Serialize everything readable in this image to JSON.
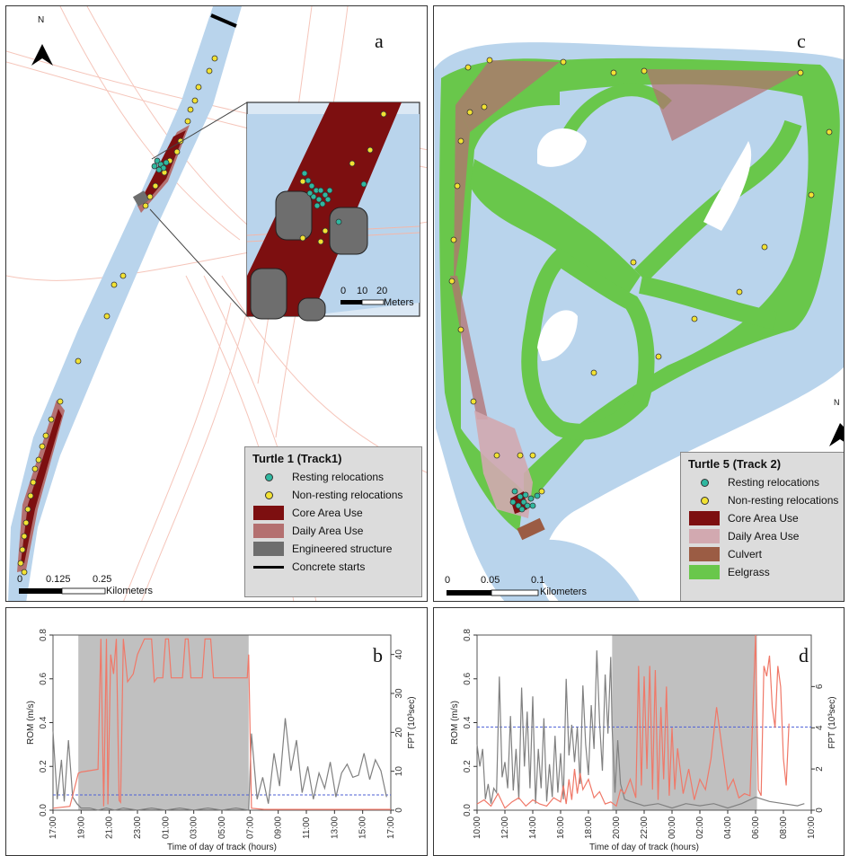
{
  "colors": {
    "water": "#b9d4ec",
    "road": "#f3b7a9",
    "core": "#7d0f10",
    "daily": "#b47070",
    "daily_c": "#d2a9b0",
    "engineered": "#6e6e6e",
    "culvert": "#9b5c44",
    "eelgrass": "#69c74b",
    "resting": "#2fb8a0",
    "nonresting": "#f2e233",
    "night": "#c0c0c0",
    "rom_line": "#808080",
    "fpt_line": "#f07868",
    "threshold": "#4c5fd6"
  },
  "panels": {
    "a": {
      "letter": "a",
      "north": "N",
      "legend": {
        "title": "Turtle 1 (Track1)",
        "items": [
          {
            "label": "Resting relocations",
            "type": "dot",
            "color": "#2fb8a0"
          },
          {
            "label": "Non-resting relocations",
            "type": "dot",
            "color": "#f2e233"
          },
          {
            "label": "Core Area Use",
            "type": "swatch",
            "color": "#7d0f10"
          },
          {
            "label": "Daily Area Use",
            "type": "swatch",
            "color": "#b47070"
          },
          {
            "label": "Engineered structure",
            "type": "swatch",
            "color": "#6e6e6e"
          },
          {
            "label": "Concrete starts",
            "type": "line",
            "color": "#000000"
          }
        ]
      },
      "scale": {
        "ticks": [
          "0",
          "0.125",
          "0.25"
        ],
        "unit": "Kilometers"
      },
      "inset_scale": {
        "ticks": [
          "0",
          "10",
          "20"
        ],
        "unit": "Meters"
      }
    },
    "c": {
      "letter": "c",
      "north": "N",
      "legend": {
        "title": "Turtle 5 (Track 2)",
        "items": [
          {
            "label": "Resting relocations",
            "type": "dot",
            "color": "#2fb8a0"
          },
          {
            "label": "Non-resting relocations",
            "type": "dot",
            "color": "#f2e233"
          },
          {
            "label": "Core Area Use",
            "type": "swatch",
            "color": "#7d0f10"
          },
          {
            "label": "Daily Area Use",
            "type": "swatch",
            "color": "#d2a9b0"
          },
          {
            "label": "Culvert",
            "type": "swatch",
            "color": "#9b5c44"
          },
          {
            "label": "Eelgrass",
            "type": "swatch",
            "color": "#69c74b"
          }
        ]
      },
      "scale": {
        "ticks": [
          "0",
          "0.05",
          "0.1"
        ],
        "unit": "Kilometers"
      }
    }
  },
  "chart_data": [
    {
      "panel": "b",
      "type": "line",
      "xlabel": "Time of day of track (hours)",
      "ylabel": "ROM (m/s)",
      "y2label": "FPT (10³sec)",
      "ylim": [
        0,
        0.8
      ],
      "y2lim": [
        0,
        45
      ],
      "xlim": [
        0,
        24
      ],
      "x_ticks": [
        0,
        2,
        4,
        6,
        8,
        10,
        12,
        14,
        16,
        18,
        20,
        22,
        24
      ],
      "x_tick_labels": [
        "17:00",
        "19:00",
        "21:00",
        "23:00",
        "01:00",
        "03:00",
        "05:00",
        "07:00",
        "09:00",
        "11:00",
        "13:00",
        "15:00",
        "17:00"
      ],
      "y_ticks": [
        0.0,
        0.2,
        0.4,
        0.6,
        0.8
      ],
      "y_tick_labels": [
        "0.0",
        "0.2",
        "0.4",
        "0.6",
        "0.8"
      ],
      "y2_ticks": [
        0,
        10,
        20,
        30,
        40
      ],
      "y2_tick_labels": [
        "0",
        "10",
        "20",
        "30",
        "40"
      ],
      "night": [
        1.8,
        13.9
      ],
      "threshold": 0.07,
      "series": [
        {
          "axis": "left",
          "x": [
            0,
            0.3,
            0.6,
            0.8,
            1.1,
            1.4,
            1.7,
            2.0,
            2.6,
            3.2,
            3.8,
            4.4,
            5.0,
            6.0,
            7.0,
            8.0,
            9.0,
            10.0,
            11.0,
            12.0,
            13.0,
            13.9,
            14.1,
            14.5,
            14.9,
            15.3,
            15.7,
            16.1,
            16.5,
            16.9,
            17.3,
            17.7,
            18.1,
            18.5,
            18.9,
            19.3,
            19.7,
            20.1,
            20.5,
            20.9,
            21.3,
            21.7,
            22.1,
            22.5,
            22.9,
            23.3,
            23.7
          ],
          "y": [
            0.36,
            0.05,
            0.23,
            0.04,
            0.32,
            0.06,
            0.03,
            0.01,
            0.01,
            0.0,
            0.01,
            0.0,
            0.01,
            0.0,
            0.01,
            0.0,
            0.01,
            0.0,
            0.01,
            0.0,
            0.01,
            0.0,
            0.35,
            0.05,
            0.15,
            0.03,
            0.26,
            0.11,
            0.42,
            0.18,
            0.32,
            0.08,
            0.2,
            0.05,
            0.17,
            0.1,
            0.22,
            0.06,
            0.17,
            0.21,
            0.15,
            0.16,
            0.26,
            0.14,
            0.23,
            0.18,
            0.06
          ]
        },
        {
          "axis": "right",
          "x": [
            0,
            1.2,
            1.8,
            2.0,
            3.2,
            3.4,
            3.6,
            3.8,
            3.9,
            4.1,
            4.3,
            4.5,
            4.7,
            4.8,
            5.0,
            5.3,
            5.5,
            5.7,
            6.0,
            6.5,
            7.0,
            7.2,
            7.4,
            7.6,
            7.8,
            8.0,
            8.2,
            8.4,
            8.6,
            8.8,
            9.0,
            9.2,
            9.4,
            9.6,
            9.8,
            10.0,
            10.2,
            10.4,
            10.6,
            10.8,
            11.0,
            11.2,
            11.4,
            11.6,
            11.8,
            12.0,
            12.2,
            12.4,
            12.6,
            12.8,
            13.0,
            13.2,
            13.4,
            13.6,
            13.8,
            13.9,
            14.1,
            15.0,
            18.0,
            21.0,
            24.0
          ],
          "y": [
            0.5,
            1.0,
            9.5,
            9.8,
            10.5,
            44.0,
            1.0,
            44.0,
            1.5,
            40.0,
            35.0,
            44.0,
            2.5,
            2.0,
            44.0,
            33.0,
            34.0,
            35.0,
            40.0,
            44.0,
            44.0,
            33.0,
            34.0,
            34.0,
            34.0,
            44.0,
            44.0,
            34.0,
            34.0,
            34.0,
            34.0,
            34.0,
            44.0,
            44.0,
            34.0,
            34.0,
            34.0,
            34.0,
            34.0,
            44.0,
            44.0,
            44.0,
            34.0,
            34.0,
            34.0,
            34.0,
            34.0,
            34.0,
            34.0,
            34.0,
            34.0,
            34.0,
            34.0,
            34.0,
            34.0,
            40.0,
            0.5,
            0.2,
            0.2,
            0.2,
            0.2
          ]
        }
      ]
    },
    {
      "panel": "d",
      "type": "line",
      "xlabel": "Time of day of track (hours)",
      "ylabel": "ROM (m/s)",
      "y2label": "FPT (10³sec)",
      "ylim": [
        0,
        0.8
      ],
      "y2lim": [
        0,
        8.5
      ],
      "xlim": [
        0,
        24
      ],
      "x_ticks": [
        0,
        2,
        4,
        6,
        8,
        10,
        12,
        14,
        16,
        18,
        20,
        22,
        24
      ],
      "x_tick_labels": [
        "10:00",
        "12:00",
        "14:00",
        "16:00",
        "18:00",
        "20:00",
        "22:00",
        "00:00",
        "02:00",
        "04:00",
        "06:00",
        "08:00",
        "10:00"
      ],
      "y_ticks": [
        0.0,
        0.2,
        0.4,
        0.6,
        0.8
      ],
      "y_tick_labels": [
        "0.0",
        "0.2",
        "0.4",
        "0.6",
        "0.8"
      ],
      "y2_ticks": [
        0,
        2,
        4,
        6
      ],
      "y2_tick_labels": [
        "0",
        "2",
        "4",
        "6"
      ],
      "night": [
        9.7,
        20.1
      ],
      "threshold": 0.38,
      "series": [
        {
          "axis": "left",
          "x": [
            0,
            0.2,
            0.4,
            0.6,
            0.8,
            1.0,
            1.2,
            1.4,
            1.6,
            1.8,
            2.0,
            2.2,
            2.4,
            2.6,
            2.8,
            3.0,
            3.2,
            3.4,
            3.6,
            3.8,
            4.0,
            4.2,
            4.4,
            4.6,
            4.8,
            5.0,
            5.2,
            5.4,
            5.6,
            5.8,
            6.0,
            6.2,
            6.4,
            6.6,
            6.8,
            7.0,
            7.2,
            7.4,
            7.6,
            7.8,
            8.0,
            8.2,
            8.4,
            8.6,
            8.8,
            9.0,
            9.2,
            9.4,
            9.6,
            9.7,
            9.9,
            10.1,
            10.3,
            10.6,
            11.0,
            12.0,
            13.0,
            14.0,
            15.0,
            16.0,
            17.0,
            18.0,
            19.0,
            20.0,
            21.0,
            22.0,
            23.0,
            23.5
          ],
          "y": [
            0.3,
            0.2,
            0.28,
            0.05,
            0.12,
            0.03,
            0.1,
            0.08,
            0.61,
            0.15,
            0.22,
            0.1,
            0.43,
            0.09,
            0.28,
            0.05,
            0.56,
            0.2,
            0.45,
            0.1,
            0.52,
            0.03,
            0.28,
            0.1,
            0.42,
            0.04,
            0.21,
            0.06,
            0.34,
            0.08,
            0.26,
            0.05,
            0.6,
            0.25,
            0.39,
            0.22,
            0.38,
            0.12,
            0.57,
            0.3,
            0.16,
            0.48,
            0.28,
            0.73,
            0.4,
            0.18,
            0.62,
            0.35,
            0.7,
            0.38,
            0.08,
            0.32,
            0.12,
            0.05,
            0.04,
            0.02,
            0.03,
            0.01,
            0.03,
            0.02,
            0.03,
            0.01,
            0.03,
            0.06,
            0.04,
            0.03,
            0.02,
            0.03
          ]
        },
        {
          "axis": "right",
          "x": [
            0,
            0.5,
            1.0,
            1.5,
            2.0,
            2.5,
            3.0,
            3.5,
            4.0,
            4.5,
            5.0,
            5.5,
            6.0,
            6.2,
            6.4,
            6.6,
            6.8,
            7.0,
            7.2,
            7.4,
            7.6,
            8.0,
            8.4,
            8.8,
            9.2,
            9.6,
            10.0,
            10.3,
            10.6,
            11.0,
            11.4,
            11.6,
            11.8,
            12.0,
            12.2,
            12.4,
            12.6,
            12.8,
            13.0,
            13.2,
            13.4,
            13.6,
            13.8,
            14.0,
            14.2,
            14.4,
            14.8,
            15.2,
            15.6,
            16.0,
            16.4,
            16.8,
            17.2,
            17.6,
            18.0,
            18.4,
            18.8,
            19.2,
            19.6,
            20.0,
            20.2,
            20.4,
            20.6,
            20.8,
            21.0,
            21.2,
            21.4,
            21.6,
            21.8,
            22.0,
            22.2,
            22.4
          ],
          "y": [
            0.3,
            0.5,
            0.2,
            0.8,
            0.1,
            0.4,
            0.6,
            0.2,
            0.5,
            0.3,
            0.2,
            0.6,
            0.4,
            1.2,
            0.3,
            1.5,
            0.5,
            2.0,
            0.8,
            1.8,
            1.0,
            1.5,
            0.6,
            0.9,
            0.3,
            0.4,
            0.2,
            1.0,
            0.8,
            1.5,
            0.6,
            7.0,
            1.2,
            6.5,
            2.0,
            7.0,
            1.0,
            6.8,
            0.5,
            5.0,
            1.5,
            6.0,
            0.7,
            4.0,
            1.0,
            3.0,
            0.8,
            2.0,
            0.5,
            1.5,
            1.0,
            2.5,
            5.0,
            3.0,
            1.0,
            1.5,
            0.6,
            0.8,
            0.7,
            8.5,
            1.0,
            0.7,
            7.0,
            6.5,
            7.5,
            5.0,
            4.0,
            7.0,
            6.0,
            2.5,
            1.2,
            4.2
          ]
        }
      ]
    }
  ]
}
